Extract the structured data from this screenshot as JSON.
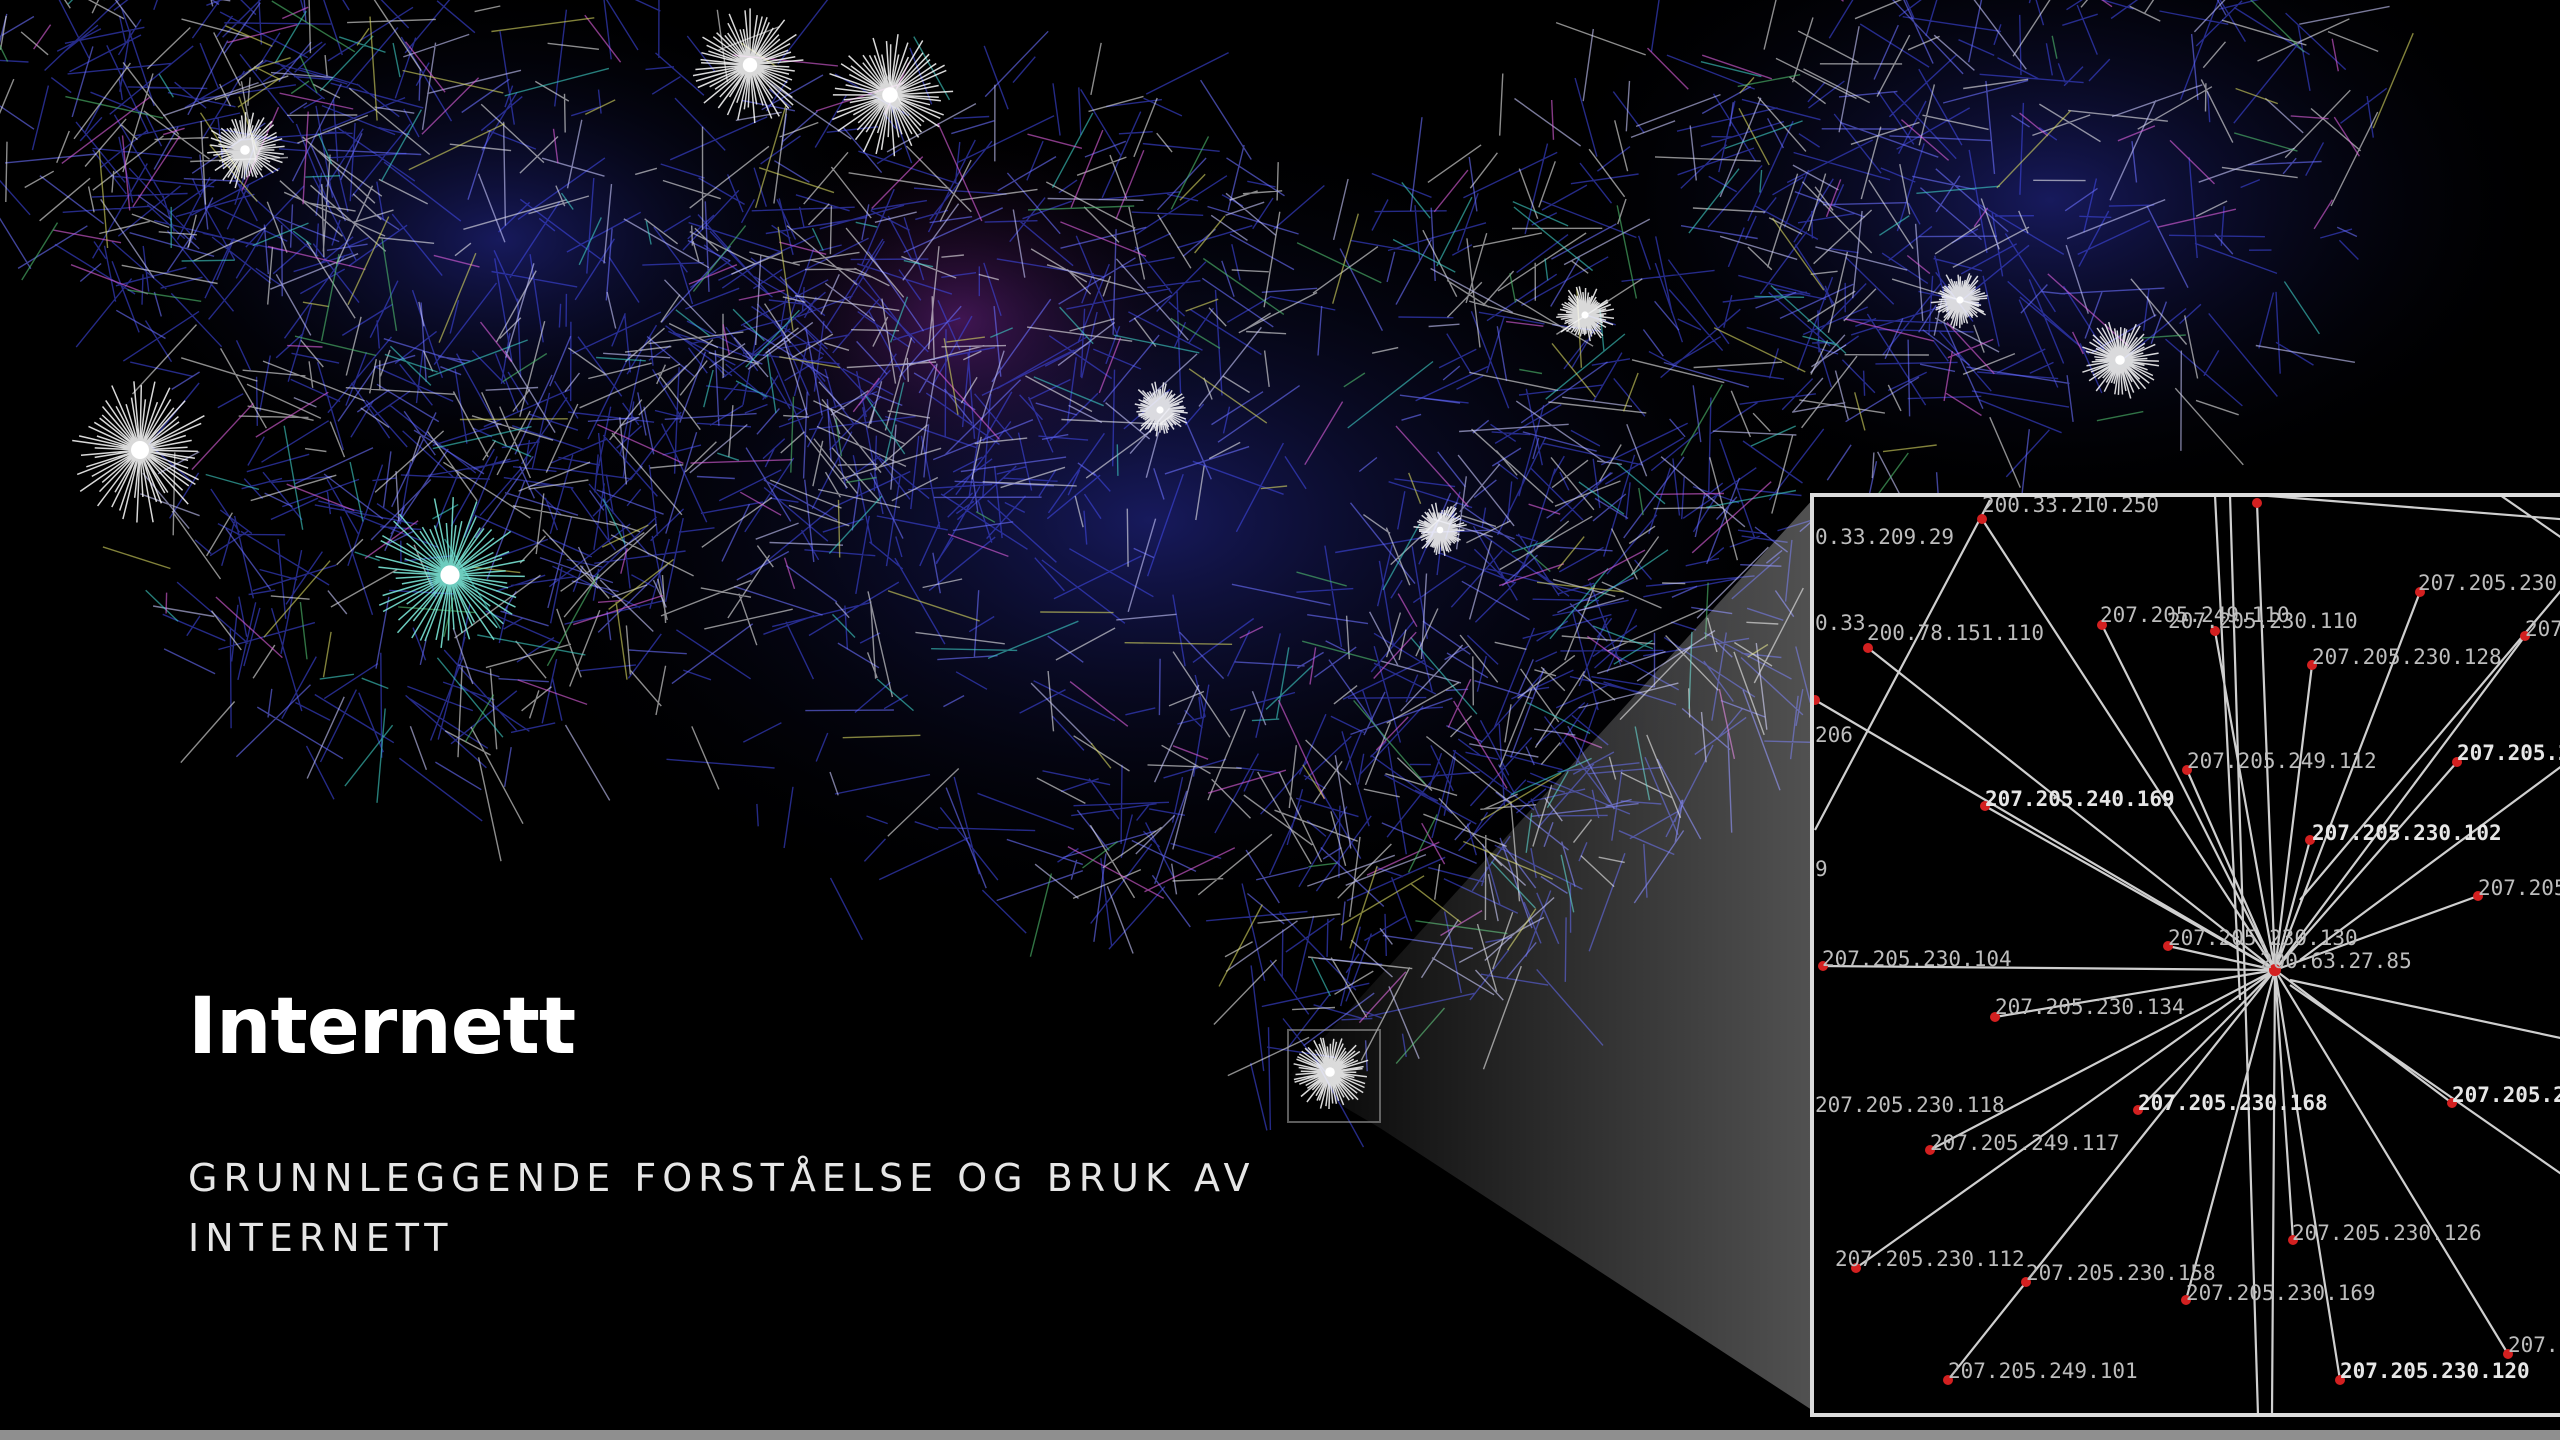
{
  "slide": {
    "title": "Internett",
    "subtitle": "GRUNNLEGGENDE FORSTÅELSE OG BRUK AV INTERNETT"
  },
  "colors": {
    "background": "#000000",
    "title_text": "#ffffff",
    "subtitle_text": "#e6e6e6",
    "inset_border": "#dcdcdc",
    "node_red": "#d32020",
    "bottom_bar": "#8f8f8f",
    "network_palette": [
      "#3e46e0",
      "#6a70ff",
      "#ffffff",
      "#c9c9ff",
      "#40d0c8",
      "#e060e0",
      "#d8d860",
      "#50c070"
    ]
  },
  "inset": {
    "labels": [
      "200.33.210.250",
      "0.33.209.29",
      "0.33",
      "200.78.151.110",
      "207.205.249.110",
      "207.205.230.110",
      "207.205.230.128",
      "207.205.230.",
      "207",
      "206",
      "207.205.249.112",
      "207.205.2",
      "207.205.240.169",
      "207.205.230.102",
      "9",
      "207.205",
      "207.205.230.130",
      "200.63.27.85",
      "207.205.230.104",
      "207.205.230.134",
      "207.205.230.118",
      "207.205.230.168",
      "207.205.2",
      "207.205.249.117",
      "207.205.230.126",
      "207.205.230.112",
      "207.205.230.158",
      "207.205.230.169",
      "207.2",
      "207.205.249.101",
      "207.205.230.120"
    ]
  }
}
